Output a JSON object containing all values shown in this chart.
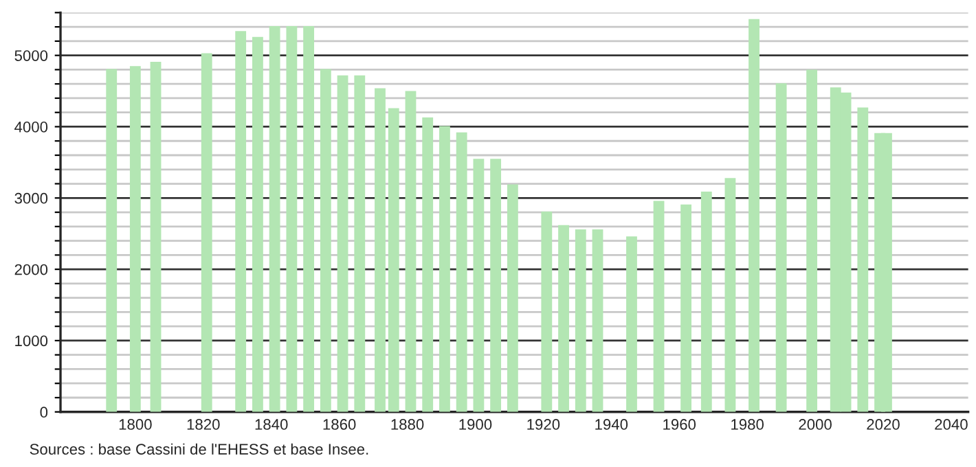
{
  "chart_data": {
    "type": "bar",
    "color": "#b3e6b3",
    "x": [
      1793,
      1800,
      1806,
      1821,
      1831,
      1836,
      1841,
      1846,
      1851,
      1856,
      1861,
      1866,
      1872,
      1876,
      1881,
      1886,
      1891,
      1896,
      1901,
      1906,
      1911,
      1921,
      1926,
      1931,
      1936,
      1946,
      1954,
      1962,
      1968,
      1975,
      1982,
      1990,
      1999,
      2006,
      2009,
      2014,
      2019,
      2021
    ],
    "values": [
      4810,
      4850,
      4910,
      5030,
      5340,
      5260,
      5410,
      5410,
      5410,
      4810,
      4720,
      4720,
      4540,
      4260,
      4500,
      4130,
      4010,
      3920,
      3550,
      3550,
      3190,
      2810,
      2620,
      2560,
      2560,
      2460,
      2960,
      2910,
      3090,
      3280,
      5510,
      4610,
      4800,
      4550,
      4480,
      4270,
      3910,
      3910
    ],
    "xlim": [
      1778,
      2045
    ],
    "xticks": [
      1800,
      1820,
      1840,
      1860,
      1880,
      1900,
      1920,
      1940,
      1960,
      1980,
      2000,
      2020,
      2040
    ],
    "ylim": [
      0,
      5600
    ],
    "yticks": [
      0,
      {
        "value": 200,
        "label": null
      },
      {
        "value": 400,
        "label": null
      },
      {
        "value": 600,
        "label": null
      },
      {
        "value": 800,
        "label": null
      },
      1000,
      {
        "value": 1200,
        "label": null
      },
      {
        "value": 1400,
        "label": null
      },
      {
        "value": 1600,
        "label": null
      },
      {
        "value": 1800,
        "label": null
      },
      2000,
      {
        "value": 2200,
        "label": null
      },
      {
        "value": 2400,
        "label": null
      },
      {
        "value": 2600,
        "label": null
      },
      {
        "value": 2800,
        "label": null
      },
      3000,
      {
        "value": 3200,
        "label": null
      },
      {
        "value": 3400,
        "label": null
      },
      {
        "value": 3600,
        "label": null
      },
      {
        "value": 3800,
        "label": null
      },
      4000,
      {
        "value": 4200,
        "label": null
      },
      {
        "value": 4400,
        "label": null
      },
      {
        "value": 4600,
        "label": null
      },
      {
        "value": 4800,
        "label": null
      },
      5000,
      {
        "value": 5200,
        "label": null
      },
      {
        "value": 5400,
        "label": null
      },
      {
        "value": 5600,
        "label": null
      }
    ],
    "grid": "y",
    "annotations": [
      "Sources : base Cassini de l'EHESS et base Insee."
    ]
  }
}
